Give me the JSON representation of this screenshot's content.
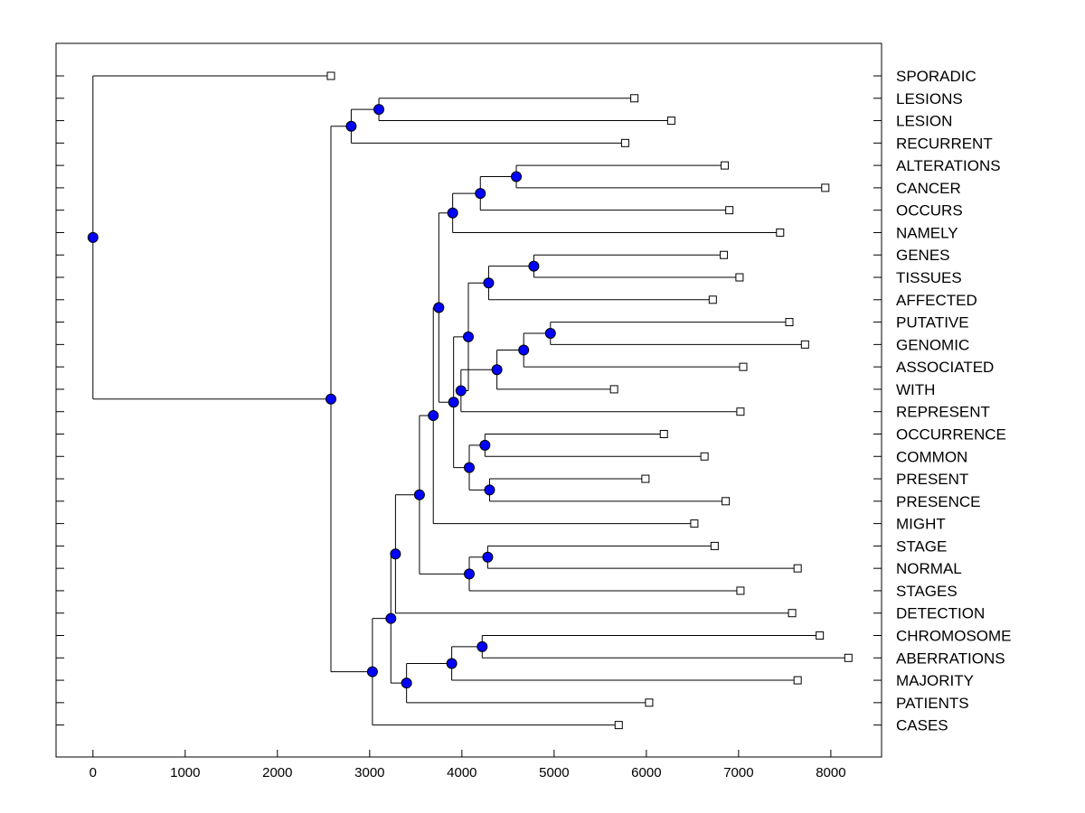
{
  "chart_data": {
    "type": "dendrogram",
    "title": "",
    "xlabel": "",
    "ylabel": "",
    "xlim": [
      -400,
      8550
    ],
    "x_ticks": [
      0,
      1000,
      2000,
      3000,
      4000,
      5000,
      6000,
      7000,
      8000
    ],
    "x_tick_labels": [
      "0",
      "1000",
      "2000",
      "3000",
      "4000",
      "5000",
      "6000",
      "7000",
      "8000"
    ],
    "leaves": [
      {
        "label": "SPORADIC",
        "x": 2580
      },
      {
        "label": "LESIONS",
        "x": 5870
      },
      {
        "label": "LESION",
        "x": 6270
      },
      {
        "label": "RECURRENT",
        "x": 5770
      },
      {
        "label": "ALTERATIONS",
        "x": 6850
      },
      {
        "label": "CANCER",
        "x": 7940
      },
      {
        "label": "OCCURS",
        "x": 6900
      },
      {
        "label": "NAMELY",
        "x": 7450
      },
      {
        "label": "GENES",
        "x": 6840
      },
      {
        "label": "TISSUES",
        "x": 7010
      },
      {
        "label": "AFFECTED",
        "x": 6720
      },
      {
        "label": "PUTATIVE",
        "x": 7550
      },
      {
        "label": "GENOMIC",
        "x": 7720
      },
      {
        "label": "ASSOCIATED",
        "x": 7050
      },
      {
        "label": "WITH",
        "x": 5650
      },
      {
        "label": "REPRESENT",
        "x": 7020
      },
      {
        "label": "OCCURRENCE",
        "x": 6190
      },
      {
        "label": "COMMON",
        "x": 6630
      },
      {
        "label": "PRESENT",
        "x": 5990
      },
      {
        "label": "PRESENCE",
        "x": 6860
      },
      {
        "label": "MIGHT",
        "x": 6520
      },
      {
        "label": "STAGE",
        "x": 6740
      },
      {
        "label": "NORMAL",
        "x": 7640
      },
      {
        "label": "STAGES",
        "x": 7020
      },
      {
        "label": "DETECTION",
        "x": 7580
      },
      {
        "label": "CHROMOSOME",
        "x": 7880
      },
      {
        "label": "ABERRATIONS",
        "x": 8190
      },
      {
        "label": "MAJORITY",
        "x": 7640
      },
      {
        "label": "PATIENTS",
        "x": 6030
      },
      {
        "label": "CASES",
        "x": 5700
      }
    ],
    "merges": [
      {
        "id": "n1",
        "x": 3100,
        "children": [
          1,
          2
        ]
      },
      {
        "id": "n2",
        "x": 2800,
        "children": [
          "n1",
          3
        ]
      },
      {
        "id": "n3",
        "x": 4590,
        "children": [
          4,
          5
        ]
      },
      {
        "id": "n4",
        "x": 4200,
        "children": [
          "n3",
          6
        ]
      },
      {
        "id": "n5",
        "x": 3900,
        "children": [
          "n4",
          7
        ]
      },
      {
        "id": "n6",
        "x": 4780,
        "children": [
          8,
          9
        ]
      },
      {
        "id": "n7",
        "x": 4290,
        "children": [
          "n6",
          10
        ]
      },
      {
        "id": "n8",
        "x": 4960,
        "children": [
          11,
          12
        ]
      },
      {
        "id": "n9",
        "x": 4670,
        "children": [
          "n8",
          13
        ]
      },
      {
        "id": "n10",
        "x": 4380,
        "children": [
          "n9",
          14
        ]
      },
      {
        "id": "n11",
        "x": 3990,
        "children": [
          "n10",
          15
        ]
      },
      {
        "id": "n12",
        "x": 4070,
        "children": [
          "n7",
          "n11"
        ]
      },
      {
        "id": "n13",
        "x": 4250,
        "children": [
          16,
          17
        ]
      },
      {
        "id": "n14",
        "x": 4300,
        "children": [
          18,
          19
        ]
      },
      {
        "id": "n15",
        "x": 4080,
        "children": [
          "n13",
          "n14"
        ]
      },
      {
        "id": "n16",
        "x": 3910,
        "children": [
          "n12",
          "n15"
        ]
      },
      {
        "id": "n17",
        "x": 3750,
        "children": [
          "n5",
          "n16"
        ]
      },
      {
        "id": "n18",
        "x": 3690,
        "children": [
          "n17",
          20
        ]
      },
      {
        "id": "n19",
        "x": 4280,
        "children": [
          21,
          22
        ]
      },
      {
        "id": "n20",
        "x": 4080,
        "children": [
          "n19",
          23
        ]
      },
      {
        "id": "n21",
        "x": 3540,
        "children": [
          "n18",
          "n20"
        ]
      },
      {
        "id": "n22",
        "x": 3280,
        "children": [
          "n21",
          24
        ]
      },
      {
        "id": "n23",
        "x": 4220,
        "children": [
          25,
          26
        ]
      },
      {
        "id": "n24",
        "x": 3890,
        "children": [
          "n23",
          27
        ]
      },
      {
        "id": "n25",
        "x": 3400,
        "children": [
          "n24",
          28
        ]
      },
      {
        "id": "n26",
        "x": 3230,
        "children": [
          "n22",
          "n25"
        ]
      },
      {
        "id": "n27",
        "x": 3030,
        "children": [
          "n26",
          29
        ]
      },
      {
        "id": "n28",
        "x": 2580,
        "children": [
          "n2",
          "n27"
        ]
      },
      {
        "id": "n29",
        "x": 0,
        "children": [
          0,
          "n28"
        ]
      }
    ],
    "colors": {
      "node": "#0000ff",
      "leaf_fill": "#ffffff",
      "line": "#000000"
    }
  }
}
